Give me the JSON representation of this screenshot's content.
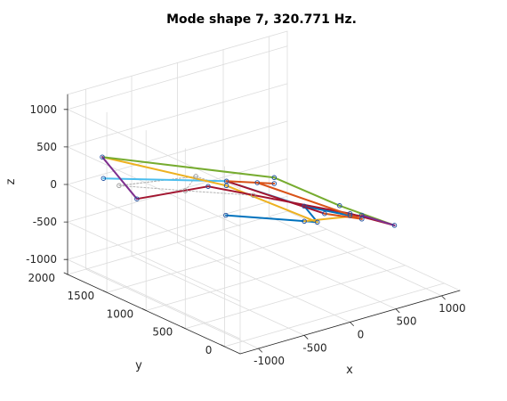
{
  "chart_data": {
    "type": "line3d",
    "title": "Mode shape 7, 320.771 Hz.",
    "xlabel": "x",
    "ylabel": "y",
    "zlabel": "z",
    "xlim": [
      -1200,
      1200
    ],
    "ylim": [
      -200,
      2000
    ],
    "zlim": [
      -1200,
      1200
    ],
    "xticks": [
      -1000,
      -500,
      0,
      500,
      1000
    ],
    "yticks": [
      0,
      500,
      1000,
      1500,
      2000
    ],
    "zticks": [
      -1000,
      -500,
      0,
      500,
      1000
    ],
    "grid": true,
    "undeformed": {
      "color": "#b4b4b4",
      "segments": [
        [
          [
            -980,
            1600,
            100
          ],
          [
            -330,
            1380,
            100
          ]
        ],
        [
          [
            -980,
            1600,
            100
          ],
          [
            -600,
            1200,
            90
          ]
        ],
        [
          [
            -600,
            1200,
            90
          ],
          [
            -200,
            800,
            80
          ]
        ],
        [
          [
            -330,
            1380,
            100
          ],
          [
            -200,
            800,
            80
          ]
        ],
        [
          [
            -980,
            1600,
            100
          ],
          [
            -330,
            1380,
            100
          ]
        ],
        [
          [
            -600,
            1200,
            90
          ],
          [
            -330,
            1380,
            100
          ]
        ]
      ]
    },
    "series": [
      {
        "color": "#4dbeee",
        "segments": [
          [
            [
              -980,
              1800,
              100
            ],
            [
              -150,
              1200,
              60
            ]
          ],
          [
            [
              -150,
              1200,
              60
            ],
            [
              400,
              850,
              -300
            ]
          ],
          [
            [
              400,
              850,
              -300
            ],
            [
              900,
              850,
              -600
            ]
          ],
          [
            [
              600,
              350,
              -250
            ],
            [
              900,
              850,
              -600
            ]
          ]
        ]
      },
      {
        "color": "#0072bd",
        "segments": [
          [
            [
              -500,
              800,
              -80
            ],
            [
              200,
              450,
              -250
            ]
          ],
          [
            [
              200,
              450,
              -250
            ],
            [
              400,
              850,
              -300
            ]
          ],
          [
            [
              400,
              850,
              -300
            ],
            [
              900,
              850,
              -600
            ]
          ]
        ]
      },
      {
        "color": "#edb120",
        "segments": [
          [
            [
              -950,
              1850,
              350
            ],
            [
              -150,
              1200,
              0
            ]
          ],
          [
            [
              -150,
              1200,
              0
            ],
            [
              200,
              450,
              -250
            ]
          ],
          [
            [
              600,
              350,
              -250
            ],
            [
              400,
              850,
              -500
            ]
          ]
        ]
      },
      {
        "color": "#77ac30",
        "segments": [
          [
            [
              -950,
              1850,
              350
            ],
            [
              200,
              1000,
              80
            ]
          ],
          [
            [
              200,
              1000,
              80
            ],
            [
              700,
              750,
              -350
            ]
          ],
          [
            [
              700,
              750,
              -350
            ],
            [
              1000,
              400,
              -550
            ]
          ]
        ]
      },
      {
        "color": "#a2142f",
        "segments": [
          [
            [
              -1000,
              1350,
              50
            ],
            [
              -350,
              1200,
              60
            ]
          ],
          [
            [
              -350,
              1200,
              60
            ],
            [
              600,
              500,
              -300
            ]
          ],
          [
            [
              600,
              500,
              -300
            ],
            [
              1000,
              400,
              -550
            ]
          ],
          [
            [
              -150,
              1200,
              60
            ],
            [
              450,
              650,
              -320
            ]
          ]
        ]
      },
      {
        "color": "#7e2f8e",
        "segments": [
          [
            [
              -1000,
              1350,
              50
            ],
            [
              -950,
              1850,
              350
            ]
          ],
          [
            [
              600,
              350,
              -250
            ],
            [
              1000,
              400,
              -550
            ]
          ]
        ]
      },
      {
        "color": "#d95319",
        "segments": [
          [
            [
              100,
              1100,
              0
            ],
            [
              600,
              350,
              -300
            ]
          ],
          [
            [
              -150,
              1200,
              60
            ],
            [
              200,
              1000,
              0
            ]
          ],
          [
            [
              450,
              650,
              -320
            ],
            [
              600,
              350,
              -300
            ]
          ]
        ]
      }
    ]
  }
}
